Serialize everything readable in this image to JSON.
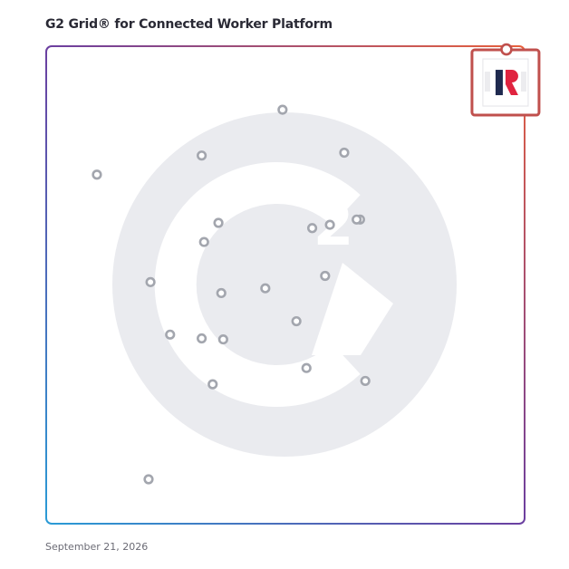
{
  "header": {
    "title": "G2 Grid® for Connected Worker Platform"
  },
  "footer": {
    "date": "September 21, 2026"
  },
  "colors": {
    "top_right": "#e8603c",
    "top_left": "#6b3fa0",
    "bottom_left": "#2a9bd6",
    "bottom_right": "#8a2f8f",
    "watermark": "#eaebef",
    "point_stroke": "#a3a6ae",
    "highlight": "#c0504d",
    "logo_navy": "#1f2a4f",
    "logo_red": "#e0233f"
  },
  "chart_data": {
    "type": "scatter",
    "title": "",
    "xlabel": "",
    "ylabel": "",
    "xlim": [
      0,
      100
    ],
    "ylim": [
      0,
      100
    ],
    "grid": "quadrant lines at 50/50",
    "watermark": "G2 logo",
    "points": [
      {
        "x": 10.6,
        "y": 73.1
      },
      {
        "x": 32.5,
        "y": 77.1
      },
      {
        "x": 49.4,
        "y": 86.7
      },
      {
        "x": 62.3,
        "y": 77.7
      },
      {
        "x": 36.0,
        "y": 63.0
      },
      {
        "x": 33.0,
        "y": 59.0
      },
      {
        "x": 55.6,
        "y": 61.9
      },
      {
        "x": 59.3,
        "y": 62.6
      },
      {
        "x": 65.6,
        "y": 63.7
      },
      {
        "x": 64.9,
        "y": 63.7
      },
      {
        "x": 58.3,
        "y": 51.9
      },
      {
        "x": 21.8,
        "y": 50.6
      },
      {
        "x": 36.6,
        "y": 48.3
      },
      {
        "x": 45.8,
        "y": 49.3
      },
      {
        "x": 52.3,
        "y": 42.4
      },
      {
        "x": 25.9,
        "y": 39.6
      },
      {
        "x": 32.5,
        "y": 38.8
      },
      {
        "x": 37.0,
        "y": 38.6
      },
      {
        "x": 54.4,
        "y": 32.6
      },
      {
        "x": 66.7,
        "y": 29.9
      },
      {
        "x": 34.8,
        "y": 29.2
      },
      {
        "x": 21.4,
        "y": 9.3
      }
    ],
    "highlighted": {
      "x": 96.2,
      "y": 92.4
    }
  }
}
